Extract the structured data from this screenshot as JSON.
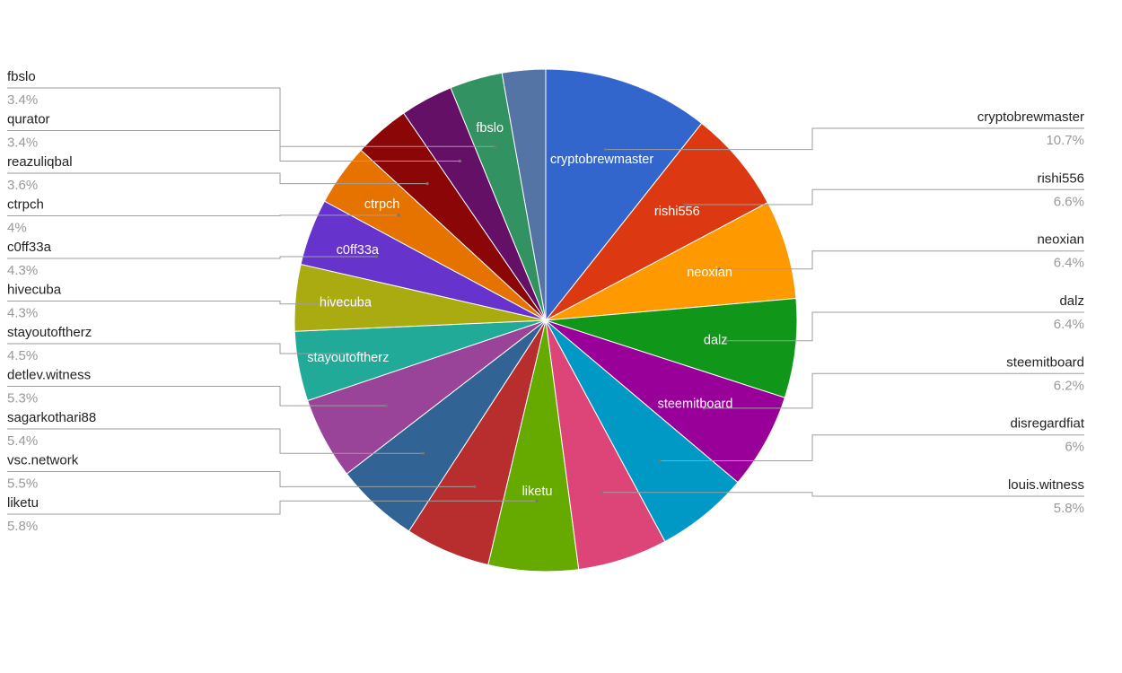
{
  "chart_data": {
    "type": "pie",
    "title": "",
    "slices": [
      {
        "label": "cryptobrewmaster",
        "value": 10.7,
        "pct_text": "10.7%",
        "color": "#3366cc",
        "show_inner": true
      },
      {
        "label": "rishi556",
        "value": 6.6,
        "pct_text": "6.6%",
        "color": "#dc3912",
        "show_inner": true
      },
      {
        "label": "neoxian",
        "value": 6.4,
        "pct_text": "6.4%",
        "color": "#ff9900",
        "show_inner": true
      },
      {
        "label": "dalz",
        "value": 6.4,
        "pct_text": "6.4%",
        "color": "#109618",
        "show_inner": true
      },
      {
        "label": "steemitboard",
        "value": 6.2,
        "pct_text": "6.2%",
        "color": "#990099",
        "show_inner": true
      },
      {
        "label": "disregardfiat",
        "value": 6.0,
        "pct_text": "6%",
        "color": "#0099c6",
        "show_inner": false
      },
      {
        "label": "louis.witness",
        "value": 5.8,
        "pct_text": "5.8%",
        "color": "#dd4477",
        "show_inner": false
      },
      {
        "label": "liketu",
        "value": 5.8,
        "pct_text": "5.8%",
        "color": "#66aa00",
        "show_inner": true
      },
      {
        "label": "vsc.network",
        "value": 5.5,
        "pct_text": "5.5%",
        "color": "#b82e2e",
        "show_inner": false
      },
      {
        "label": "sagarkothari88",
        "value": 5.4,
        "pct_text": "5.4%",
        "color": "#316395",
        "show_inner": false
      },
      {
        "label": "detlev.witness",
        "value": 5.3,
        "pct_text": "5.3%",
        "color": "#994499",
        "show_inner": false
      },
      {
        "label": "stayoutoftherz",
        "value": 4.5,
        "pct_text": "4.5%",
        "color": "#22aa99",
        "show_inner": true
      },
      {
        "label": "hivecuba",
        "value": 4.3,
        "pct_text": "4.3%",
        "color": "#aaaa11",
        "show_inner": true
      },
      {
        "label": "c0ff33a",
        "value": 4.3,
        "pct_text": "4.3%",
        "color": "#6633cc",
        "show_inner": true
      },
      {
        "label": "ctrpch",
        "value": 4.0,
        "pct_text": "4%",
        "color": "#e67300",
        "show_inner": true
      },
      {
        "label": "reazuliqbal",
        "value": 3.6,
        "pct_text": "3.6%",
        "color": "#8b0707",
        "show_inner": false
      },
      {
        "label": "qurator",
        "value": 3.4,
        "pct_text": "3.4%",
        "color": "#651067",
        "show_inner": false
      },
      {
        "label": "fbslo",
        "value": 3.4,
        "pct_text": "3.4%",
        "color": "#329262",
        "show_inner": true
      },
      {
        "label": "",
        "value": 2.8,
        "pct_text": "",
        "color": "#5574a6",
        "show_inner": false
      }
    ],
    "legend_position": "labeled-leader-lines"
  }
}
